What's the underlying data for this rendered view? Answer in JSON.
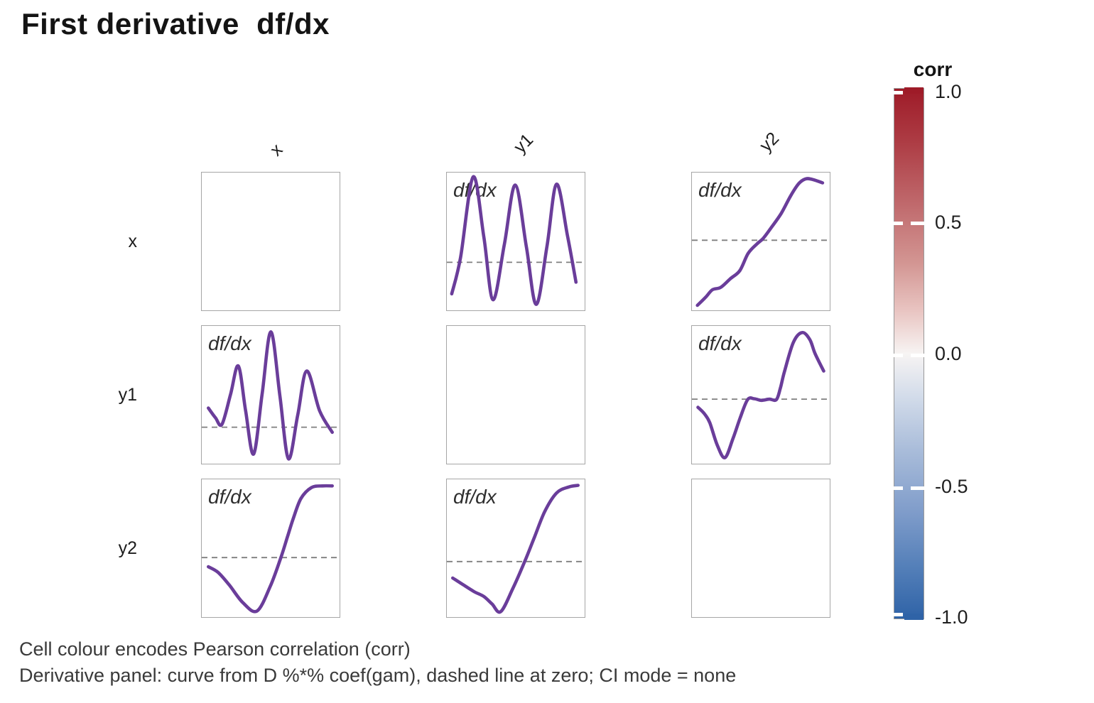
{
  "title": "First derivative  df/dx",
  "matrix": {
    "row_labels": [
      "x",
      "y1",
      "y2"
    ],
    "col_labels": [
      "x",
      "y1",
      "y2"
    ],
    "panel_label": "df/dx"
  },
  "colorbar": {
    "title": "corr",
    "ticks": [
      "1.0",
      "0.5",
      "0.0",
      "-0.5",
      "-1.0"
    ],
    "top_color": "#9e1b28",
    "mid_color": "#f7f4f3",
    "bottom_color": "#2f63a7"
  },
  "caption": {
    "line1": "Cell colour encodes Pearson correlation (corr)",
    "line2": "Derivative panel: curve from D %*% coef(gam), dashed line at zero; CI mode = none"
  },
  "colors": {
    "curve": "#6a3d9a",
    "zero_line": "#7f7f7f",
    "panel_border": "#a6a6a6"
  },
  "chart_data": {
    "type": "line",
    "description": "3x3 pairs-matrix of first-derivative curves df/dx; diagonal cells empty; dashed line marks zero. Points are normalized panel fractions: x 0..1 left to right, y 0..1 top to bottom.",
    "legend_position": "right-colorbar corr from 1.0 (red) to -1.0 (blue)",
    "panels": [
      {
        "row": "x",
        "col": "y1",
        "label": "df/dx",
        "zero_line_y": 0.655,
        "points": [
          [
            0.036,
            0.885
          ],
          [
            0.1,
            0.62
          ],
          [
            0.192,
            0.031
          ],
          [
            0.27,
            0.47
          ],
          [
            0.337,
            0.928
          ],
          [
            0.42,
            0.52
          ],
          [
            0.499,
            0.091
          ],
          [
            0.58,
            0.54
          ],
          [
            0.652,
            0.962
          ],
          [
            0.73,
            0.54
          ],
          [
            0.8,
            0.085
          ],
          [
            0.88,
            0.46
          ],
          [
            0.942,
            0.8
          ]
        ]
      },
      {
        "row": "x",
        "col": "y2",
        "label": "df/dx",
        "zero_line_y": 0.494,
        "points": [
          [
            0.04,
            0.969
          ],
          [
            0.1,
            0.91
          ],
          [
            0.15,
            0.855
          ],
          [
            0.21,
            0.838
          ],
          [
            0.28,
            0.775
          ],
          [
            0.35,
            0.715
          ],
          [
            0.41,
            0.59
          ],
          [
            0.475,
            0.52
          ],
          [
            0.52,
            0.48
          ],
          [
            0.58,
            0.4
          ],
          [
            0.65,
            0.3
          ],
          [
            0.72,
            0.17
          ],
          [
            0.78,
            0.08
          ],
          [
            0.83,
            0.046
          ],
          [
            0.88,
            0.05
          ],
          [
            0.953,
            0.075
          ]
        ]
      },
      {
        "row": "y1",
        "col": "x",
        "label": "df/dx",
        "zero_line_y": 0.739,
        "points": [
          [
            0.048,
            0.599
          ],
          [
            0.1,
            0.67
          ],
          [
            0.147,
            0.718
          ],
          [
            0.21,
            0.5
          ],
          [
            0.267,
            0.292
          ],
          [
            0.32,
            0.62
          ],
          [
            0.378,
            0.935
          ],
          [
            0.44,
            0.5
          ],
          [
            0.504,
            0.043
          ],
          [
            0.57,
            0.51
          ],
          [
            0.632,
            0.969
          ],
          [
            0.7,
            0.65
          ],
          [
            0.766,
            0.329
          ],
          [
            0.86,
            0.62
          ],
          [
            0.952,
            0.776
          ]
        ]
      },
      {
        "row": "y1",
        "col": "y2",
        "label": "df/dx",
        "zero_line_y": 0.534,
        "points": [
          [
            0.044,
            0.594
          ],
          [
            0.09,
            0.64
          ],
          [
            0.13,
            0.705
          ],
          [
            0.185,
            0.87
          ],
          [
            0.241,
            0.961
          ],
          [
            0.3,
            0.82
          ],
          [
            0.352,
            0.671
          ],
          [
            0.406,
            0.538
          ],
          [
            0.454,
            0.531
          ],
          [
            0.505,
            0.543
          ],
          [
            0.565,
            0.534
          ],
          [
            0.616,
            0.538
          ],
          [
            0.646,
            0.45
          ],
          [
            0.676,
            0.329
          ],
          [
            0.74,
            0.12
          ],
          [
            0.804,
            0.048
          ],
          [
            0.86,
            0.1
          ],
          [
            0.898,
            0.201
          ],
          [
            0.961,
            0.329
          ]
        ]
      },
      {
        "row": "y2",
        "col": "x",
        "label": "df/dx",
        "zero_line_y": 0.571,
        "points": [
          [
            0.048,
            0.638
          ],
          [
            0.12,
            0.68
          ],
          [
            0.2,
            0.77
          ],
          [
            0.3,
            0.9
          ],
          [
            0.403,
            0.961
          ],
          [
            0.5,
            0.78
          ],
          [
            0.577,
            0.571
          ],
          [
            0.625,
            0.42
          ],
          [
            0.665,
            0.294
          ],
          [
            0.723,
            0.141
          ],
          [
            0.8,
            0.06
          ],
          [
            0.88,
            0.048
          ],
          [
            0.952,
            0.048
          ]
        ]
      },
      {
        "row": "y2",
        "col": "y1",
        "label": "df/dx",
        "zero_line_y": 0.6,
        "points": [
          [
            0.043,
            0.72
          ],
          [
            0.12,
            0.77
          ],
          [
            0.2,
            0.82
          ],
          [
            0.27,
            0.855
          ],
          [
            0.33,
            0.91
          ],
          [
            0.393,
            0.966
          ],
          [
            0.48,
            0.8
          ],
          [
            0.568,
            0.6
          ],
          [
            0.64,
            0.42
          ],
          [
            0.714,
            0.235
          ],
          [
            0.8,
            0.1
          ],
          [
            0.889,
            0.056
          ],
          [
            0.957,
            0.044
          ]
        ]
      }
    ]
  }
}
